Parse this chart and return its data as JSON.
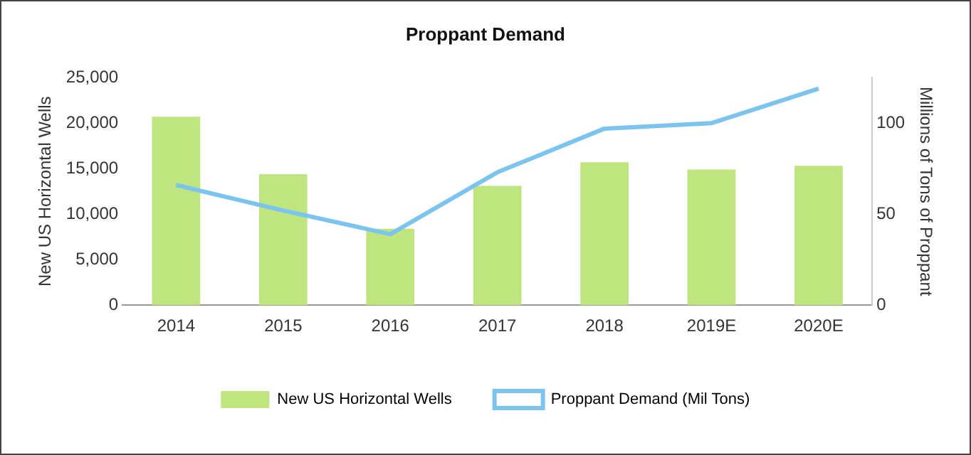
{
  "chart_data": {
    "type": "bar",
    "title": "Proppant Demand",
    "ylabel": "New US Horizontal Wells",
    "y2label": "Millions of Tons of Proppant",
    "categories": [
      "2014",
      "2015",
      "2016",
      "2017",
      "2018",
      "2019E",
      "2020E"
    ],
    "series": [
      {
        "name": "New US Horizontal Wells",
        "type": "bar",
        "color": "#bfe57f",
        "values": [
          20700,
          14400,
          8400,
          13100,
          15700,
          14900,
          15300
        ]
      },
      {
        "name": "Proppant Demand (Mil Tons)",
        "type": "line",
        "axis": "y2",
        "color": "#7cc4f0",
        "values": [
          66,
          52,
          39,
          73,
          97,
          100,
          119
        ]
      }
    ],
    "ylim": [
      0,
      25000
    ],
    "yticks": [
      0,
      {
        "value": 5000,
        "label": "5,000"
      },
      {
        "value": 10000,
        "label": "10,000"
      },
      {
        "value": 15000,
        "label": "15,000"
      },
      {
        "value": 20000,
        "label": "20,000"
      },
      {
        "value": 25000,
        "label": "25,000"
      }
    ],
    "y2lim": [
      0,
      125
    ],
    "y2ticks": [
      0,
      50,
      100
    ],
    "grid": false,
    "legend": "bottom",
    "marker": "none",
    "line_style": "solid"
  }
}
